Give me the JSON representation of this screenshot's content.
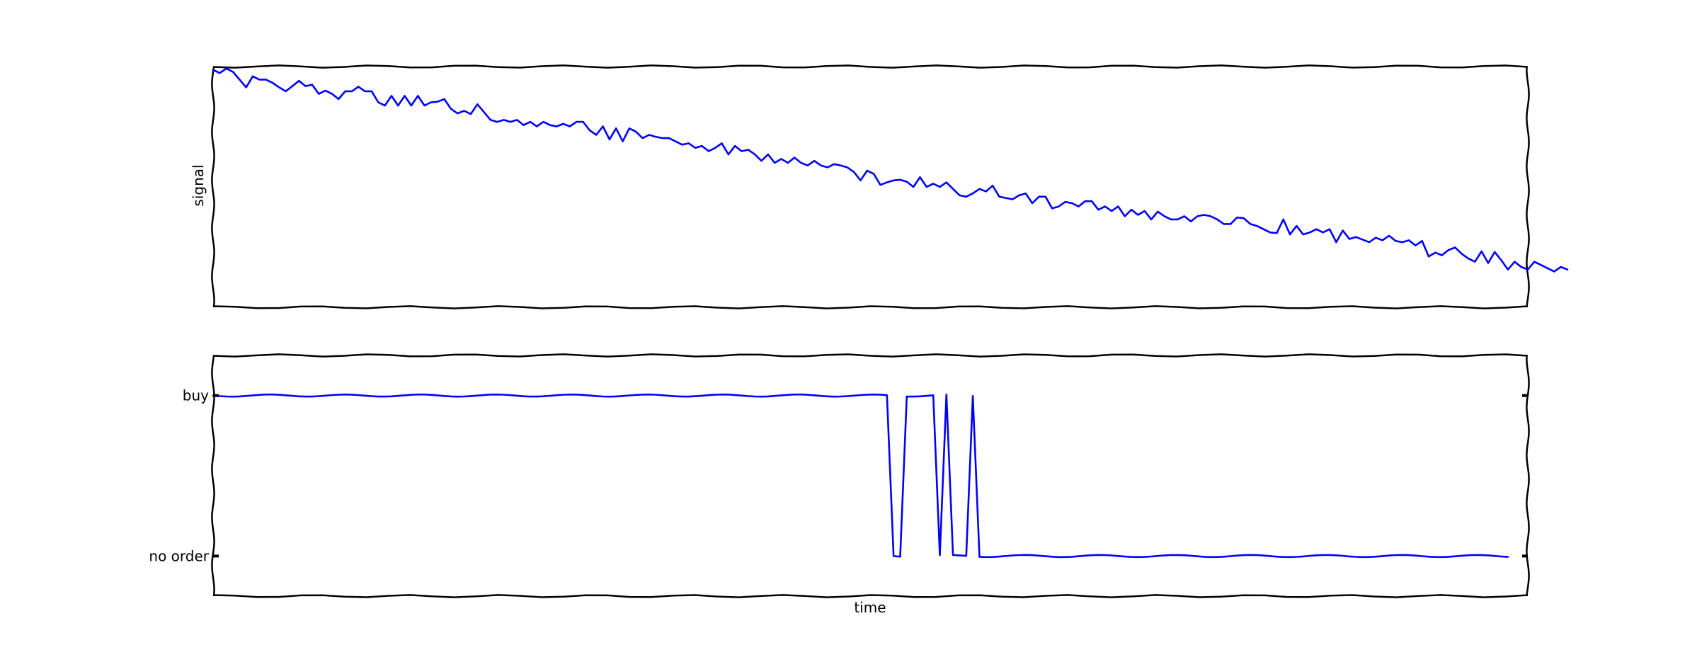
{
  "chart_data": [
    {
      "type": "line",
      "title": "",
      "xlabel": "",
      "ylabel": "signal",
      "show_xticks": false,
      "show_yticks": false,
      "grid": false,
      "style": "xkcd",
      "color": "#0000ff",
      "xlim": [
        0,
        199
      ],
      "ylim": [
        -0.01,
        0.36
      ],
      "series": [
        {
          "values": [
            0.355,
            0.35,
            0.357,
            0.352,
            0.34,
            0.328,
            0.345,
            0.34,
            0.34,
            0.335,
            0.328,
            0.322,
            0.33,
            0.338,
            0.33,
            0.332,
            0.318,
            0.323,
            0.318,
            0.31,
            0.322,
            0.322,
            0.329,
            0.322,
            0.322,
            0.305,
            0.3,
            0.315,
            0.3,
            0.315,
            0.3,
            0.315,
            0.3,
            0.305,
            0.306,
            0.31,
            0.295,
            0.288,
            0.292,
            0.287,
            0.302,
            0.29,
            0.278,
            0.275,
            0.278,
            0.275,
            0.278,
            0.27,
            0.275,
            0.268,
            0.275,
            0.27,
            0.268,
            0.272,
            0.268,
            0.275,
            0.275,
            0.262,
            0.255,
            0.268,
            0.248,
            0.265,
            0.245,
            0.265,
            0.26,
            0.25,
            0.255,
            0.252,
            0.25,
            0.25,
            0.245,
            0.24,
            0.242,
            0.235,
            0.238,
            0.23,
            0.235,
            0.242,
            0.225,
            0.238,
            0.23,
            0.232,
            0.225,
            0.215,
            0.225,
            0.212,
            0.218,
            0.212,
            0.22,
            0.212,
            0.208,
            0.215,
            0.208,
            0.205,
            0.21,
            0.208,
            0.205,
            0.198,
            0.185,
            0.2,
            0.195,
            0.178,
            0.182,
            0.185,
            0.186,
            0.183,
            0.175,
            0.19,
            0.175,
            0.18,
            0.175,
            0.182,
            0.172,
            0.162,
            0.16,
            0.165,
            0.172,
            0.168,
            0.177,
            0.16,
            0.158,
            0.156,
            0.162,
            0.165,
            0.15,
            0.16,
            0.16,
            0.142,
            0.145,
            0.152,
            0.15,
            0.145,
            0.153,
            0.153,
            0.14,
            0.145,
            0.138,
            0.145,
            0.13,
            0.14,
            0.132,
            0.138,
            0.125,
            0.137,
            0.13,
            0.125,
            0.125,
            0.13,
            0.122,
            0.13,
            0.132,
            0.13,
            0.125,
            0.118,
            0.118,
            0.128,
            0.127,
            0.118,
            0.115,
            0.11,
            0.105,
            0.104,
            0.125,
            0.102,
            0.115,
            0.102,
            0.105,
            0.11,
            0.105,
            0.11,
            0.09,
            0.108,
            0.095,
            0.098,
            0.094,
            0.09,
            0.097,
            0.093,
            0.1,
            0.092,
            0.09,
            0.093,
            0.085,
            0.092,
            0.068,
            0.074,
            0.07,
            0.078,
            0.082,
            0.072,
            0.065,
            0.06,
            0.076,
            0.058,
            0.075,
            0.062,
            0.048,
            0.06,
            0.052,
            0.048,
            0.06,
            0.055,
            0.05,
            0.045,
            0.052,
            0.048
          ]
        }
      ]
    },
    {
      "type": "line",
      "title": "",
      "xlabel": "time",
      "ylabel": "",
      "show_xticks": false,
      "yticks": {
        "values": [
          1,
          0
        ],
        "labels": [
          "buy",
          "no order"
        ]
      },
      "grid": false,
      "style": "xkcd",
      "color": "#0000ff",
      "xlim": [
        0,
        199
      ],
      "ylim": [
        -0.25,
        1.25
      ],
      "series": [
        {
          "values": [
            1,
            1,
            1,
            1,
            1,
            1,
            1,
            1,
            1,
            1,
            1,
            1,
            1,
            1,
            1,
            1,
            1,
            1,
            1,
            1,
            1,
            1,
            1,
            1,
            1,
            1,
            1,
            1,
            1,
            1,
            1,
            1,
            1,
            1,
            1,
            1,
            1,
            1,
            1,
            1,
            1,
            1,
            1,
            1,
            1,
            1,
            1,
            1,
            1,
            1,
            1,
            1,
            1,
            1,
            1,
            1,
            1,
            1,
            1,
            1,
            1,
            1,
            1,
            1,
            1,
            1,
            1,
            1,
            1,
            1,
            1,
            1,
            1,
            1,
            1,
            1,
            1,
            1,
            1,
            1,
            1,
            1,
            1,
            1,
            1,
            1,
            1,
            1,
            1,
            1,
            1,
            1,
            1,
            1,
            1,
            1,
            1,
            1,
            1,
            1,
            1,
            1,
            1,
            0,
            0,
            1,
            1,
            1,
            1,
            1,
            0,
            1,
            0,
            0,
            0,
            1,
            0,
            0,
            0,
            0,
            0,
            0,
            0,
            0,
            0,
            0,
            0,
            0,
            0,
            0,
            0,
            0,
            0,
            0,
            0,
            0,
            0,
            0,
            0,
            0,
            0,
            0,
            0,
            0,
            0,
            0,
            0,
            0,
            0,
            0,
            0,
            0,
            0,
            0,
            0,
            0,
            0,
            0,
            0,
            0,
            0,
            0,
            0,
            0,
            0,
            0,
            0,
            0,
            0,
            0,
            0,
            0,
            0,
            0,
            0,
            0,
            0,
            0,
            0,
            0,
            0,
            0,
            0,
            0,
            0,
            0,
            0,
            0,
            0,
            0,
            0,
            0,
            0,
            0,
            0,
            0,
            0
          ]
        }
      ]
    }
  ]
}
